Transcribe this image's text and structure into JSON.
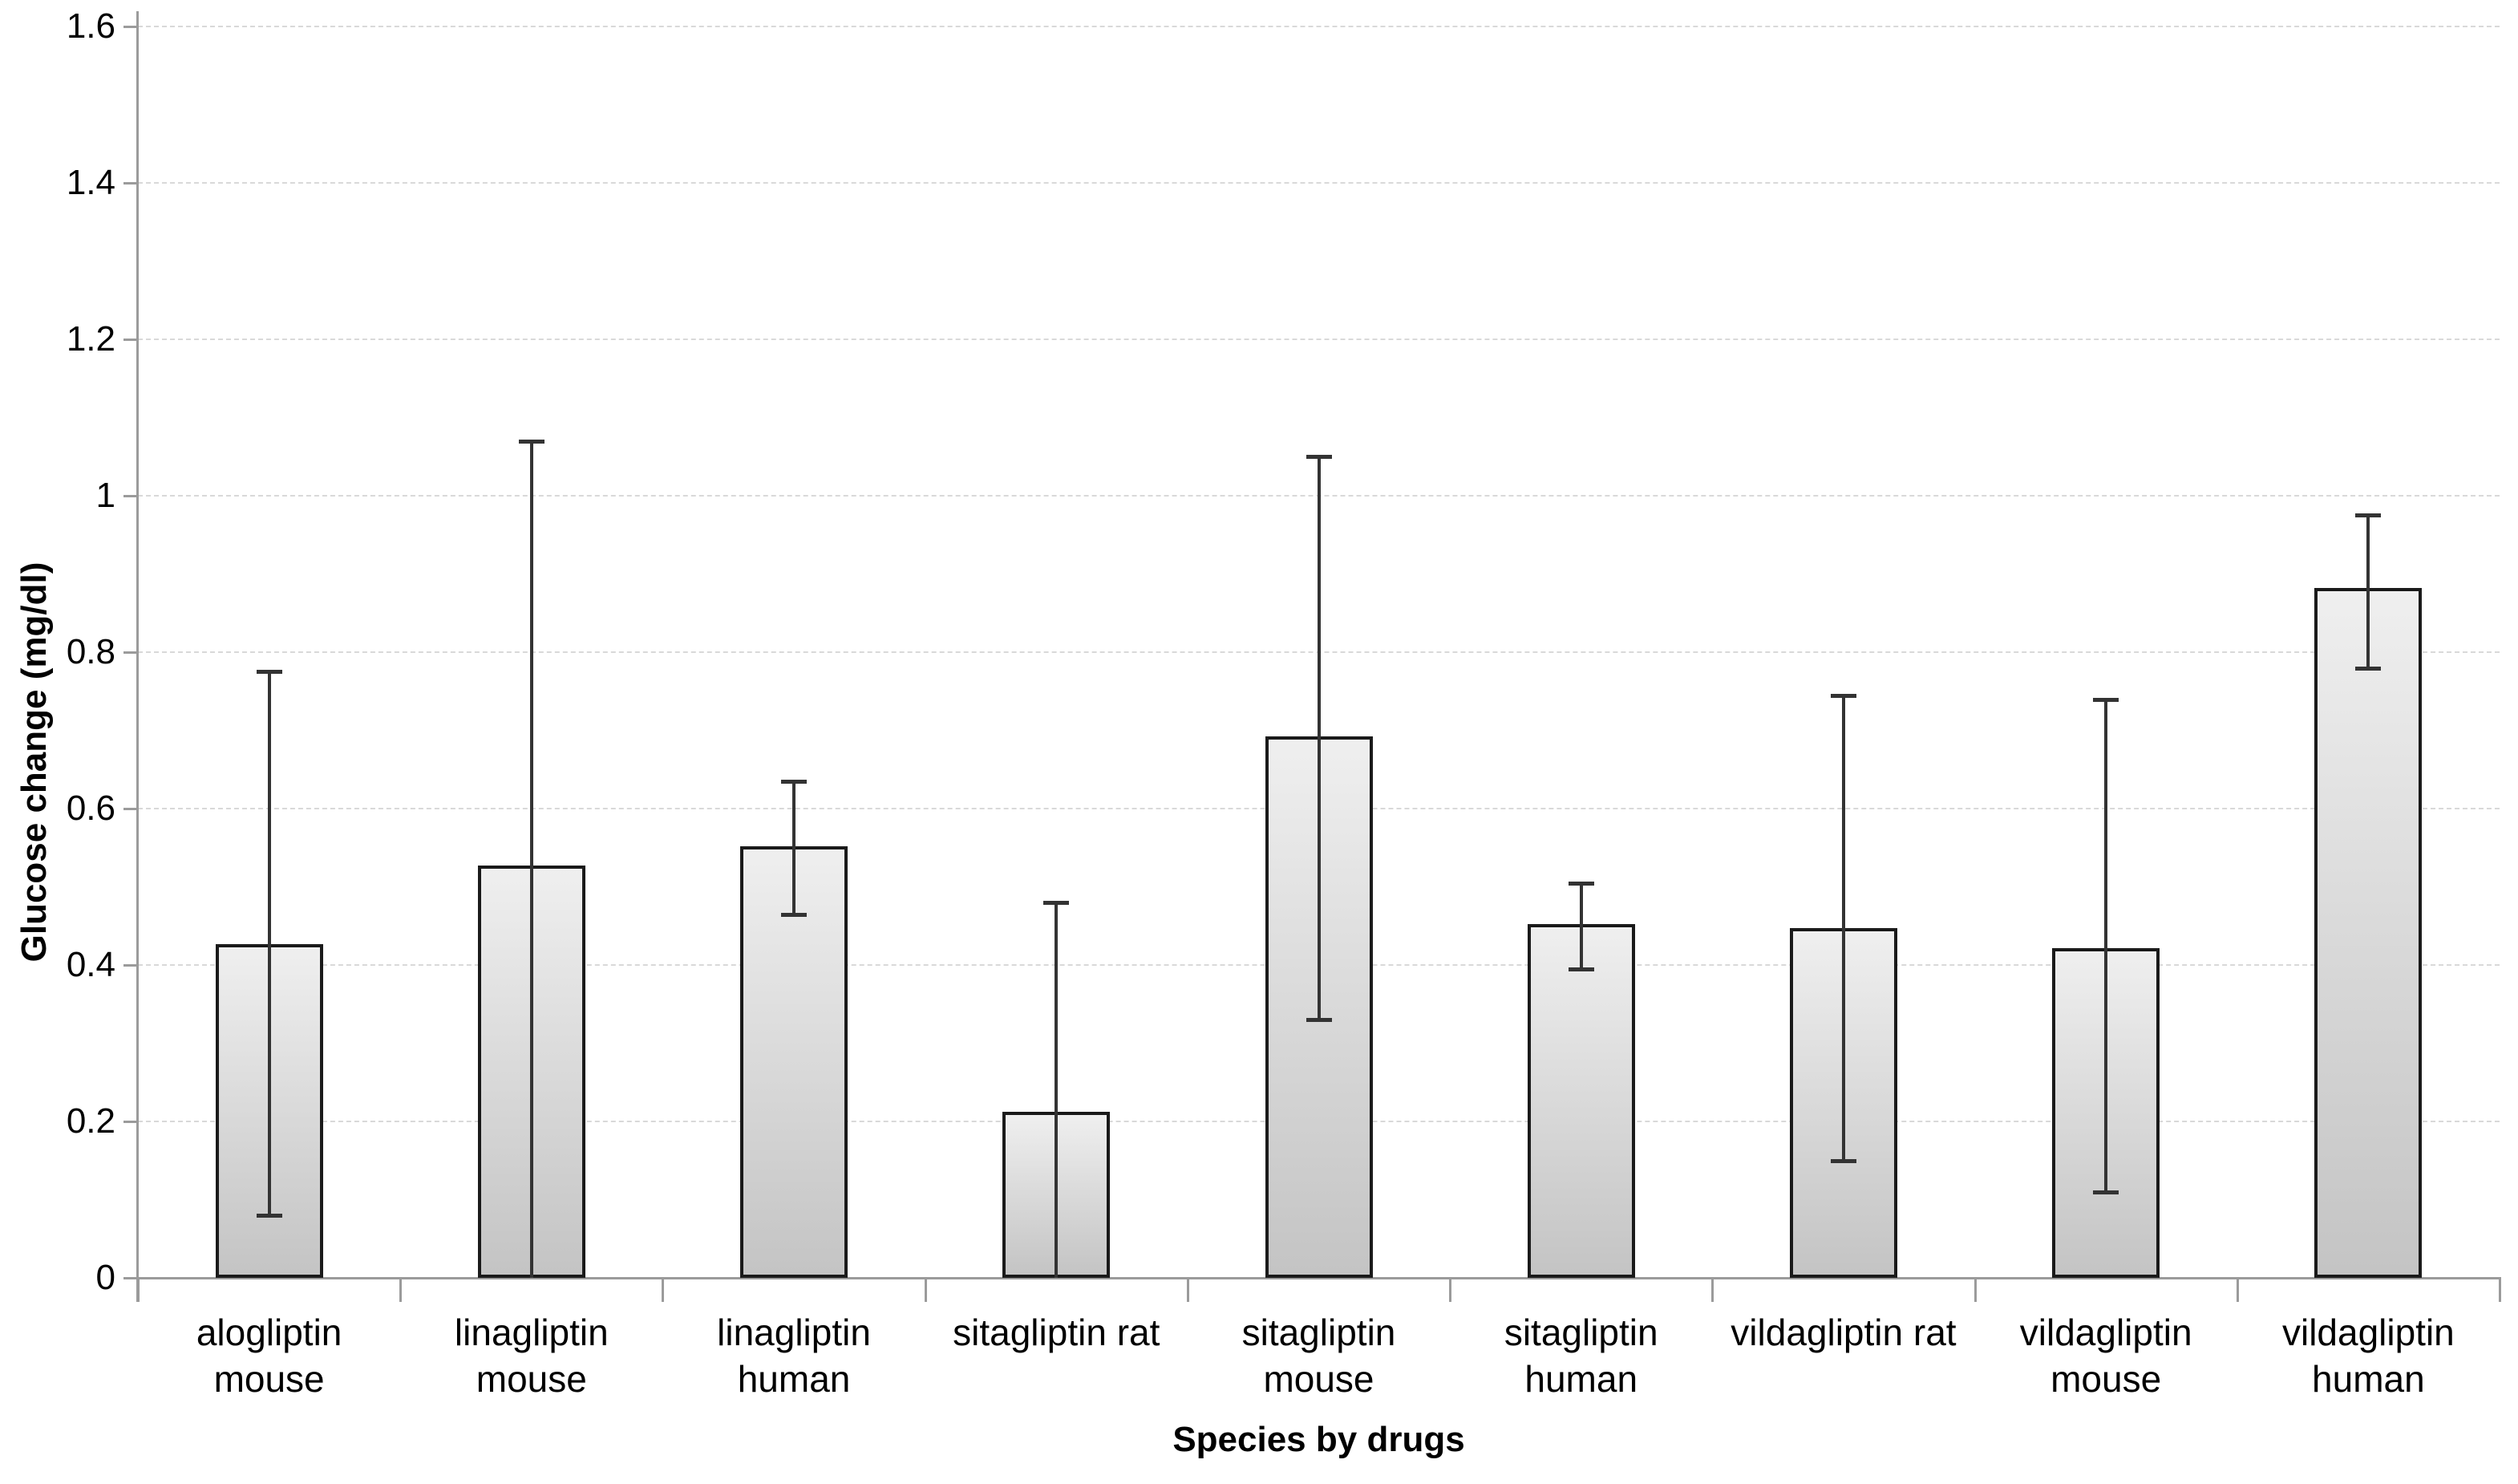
{
  "chart_data": {
    "type": "bar",
    "title": "",
    "xlabel": "Species by drugs",
    "ylabel": "Glucose change (mg/dl)",
    "ylim": [
      0,
      1.6
    ],
    "ytick_step": 0.2,
    "ytick_labels": [
      "0",
      "0.2",
      "0.4",
      "0.6",
      "0.8",
      "1",
      "1.2",
      "1.4",
      "1.6"
    ],
    "grid": "horizontal dashed gridlines every 0.2",
    "legend": "none",
    "bar_style": "gray gradient fill, black outline, error bars with caps",
    "categories": [
      "alogliptin mouse",
      "linagliptin mouse",
      "linagliptin human",
      "sitagliptin rat",
      "sitagliptin mouse",
      "sitagliptin human",
      "vildagliptin rat",
      "vildagliptin mouse",
      "vildagliptin human"
    ],
    "category_label_lines": [
      [
        "alogliptin mouse"
      ],
      [
        "linagliptin",
        "mouse"
      ],
      [
        "linagliptin",
        "human"
      ],
      [
        "sitagliptin rat"
      ],
      [
        "sitagliptin",
        "mouse"
      ],
      [
        "sitagliptin",
        "human"
      ],
      [
        "vildagliptin rat"
      ],
      [
        "vildagliptin",
        "mouse"
      ],
      [
        "vildagliptin",
        "human"
      ]
    ],
    "values": [
      0.425,
      0.525,
      0.55,
      0.21,
      0.69,
      0.45,
      0.445,
      0.42,
      0.88
    ],
    "error_low": [
      0.08,
      0,
      0.465,
      0,
      0.33,
      0.395,
      0.15,
      0.11,
      0.78
    ],
    "error_high": [
      0.775,
      1.07,
      0.635,
      0.48,
      1.05,
      0.505,
      0.745,
      0.74,
      0.975
    ]
  },
  "colors": {
    "background": "#ffffff",
    "bar_fill_top": "#efefef",
    "bar_fill_bottom": "#c4c4c4",
    "bar_border": "#1a1a1a",
    "error_bar": "#333333",
    "gridline": "#d9d9d9",
    "axis_line": "#9b9b9b",
    "text": "#000000"
  }
}
